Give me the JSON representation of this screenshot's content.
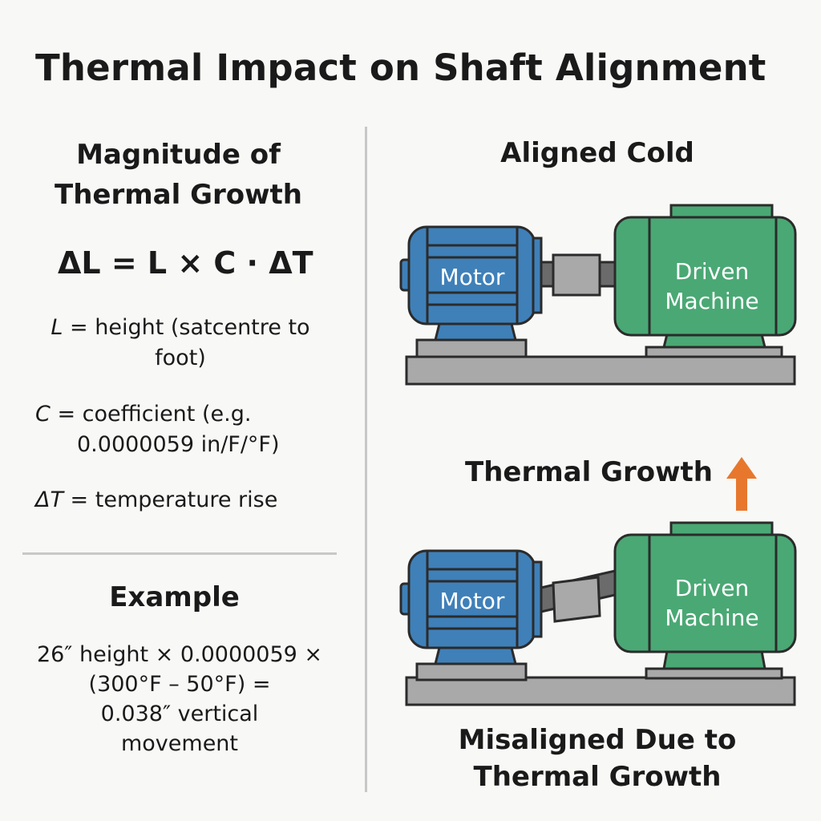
{
  "title": "Thermal Impact on Shaft Alignment",
  "left": {
    "heading_line1": "Magnitude of",
    "heading_line2": "Thermal Growth",
    "formula": "ΔL = L × C · ΔT",
    "defs": [
      {
        "symbol": "L",
        "text_line1": " = height (satcentre to",
        "text_line2": "foot)"
      },
      {
        "symbol": "C",
        "text_line1": " = coefficient (e.g.",
        "text_line2": "0.0000059 in/F/°F)"
      },
      {
        "symbol": "ΔT",
        "text_line1": " = temperature rise"
      }
    ],
    "example_heading": "Example",
    "example_lines": [
      "26″ height × 0.0000059 ×",
      "(300°F – 50°F) =",
      "0.038″ vertical",
      "movement"
    ]
  },
  "right": {
    "top_heading": "Aligned Cold",
    "growth_label": "Thermal Growth",
    "growth_arrow_icon": "arrow-up-icon",
    "bottom_heading_line1": "Misaligned Due to",
    "bottom_heading_line2": "Thermal Growth",
    "motor_label": "Motor",
    "driven_label_line1": "Driven",
    "driven_label_line2": "Machine"
  },
  "colors": {
    "motor": "#3f80b9",
    "driven": "#4aa874",
    "base": "#a9a9a9",
    "arrow": "#e8772e",
    "outline": "#2b2b2b"
  }
}
